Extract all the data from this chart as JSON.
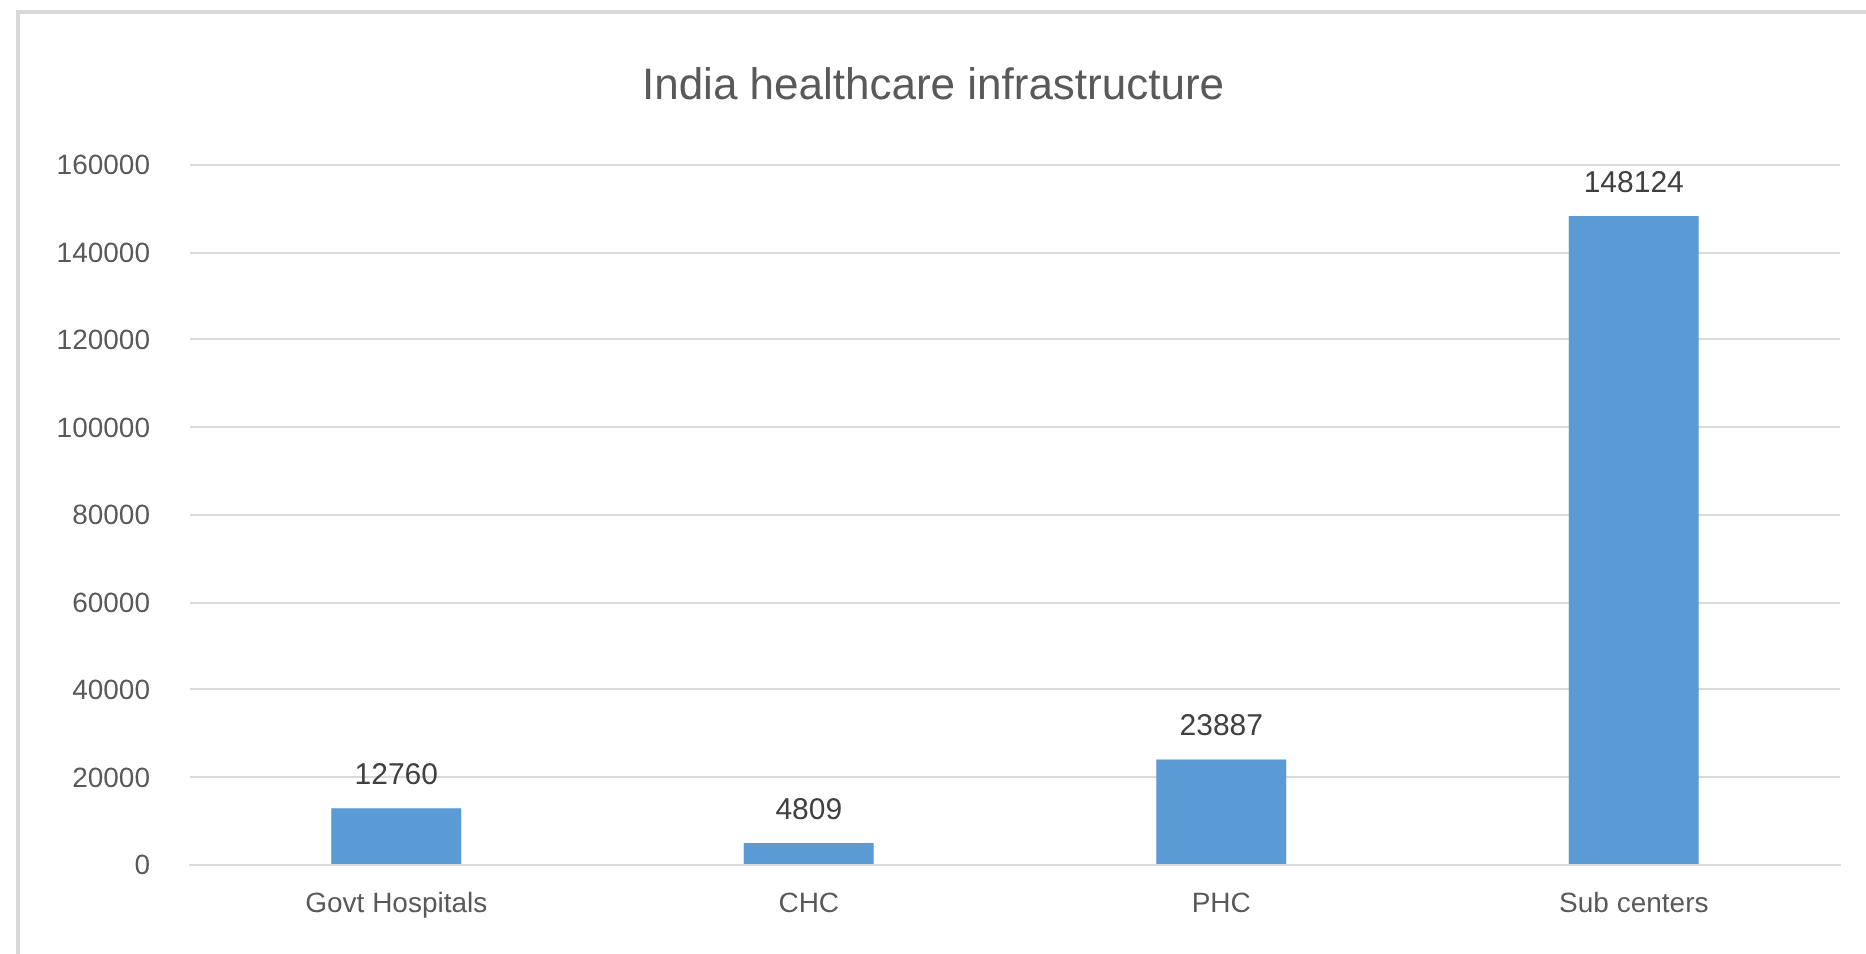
{
  "chart_data": {
    "type": "bar",
    "title": "India healthcare infrastructure",
    "categories": [
      "Govt Hospitals",
      "CHC",
      "PHC",
      "Sub centers"
    ],
    "values": [
      12760,
      4809,
      23887,
      148124
    ],
    "color": "#5b9bd5",
    "ylim": [
      0,
      160000
    ],
    "yticks": [
      0,
      20000,
      40000,
      60000,
      80000,
      100000,
      120000,
      140000,
      160000
    ],
    "grid": "y",
    "data_labels": true
  }
}
